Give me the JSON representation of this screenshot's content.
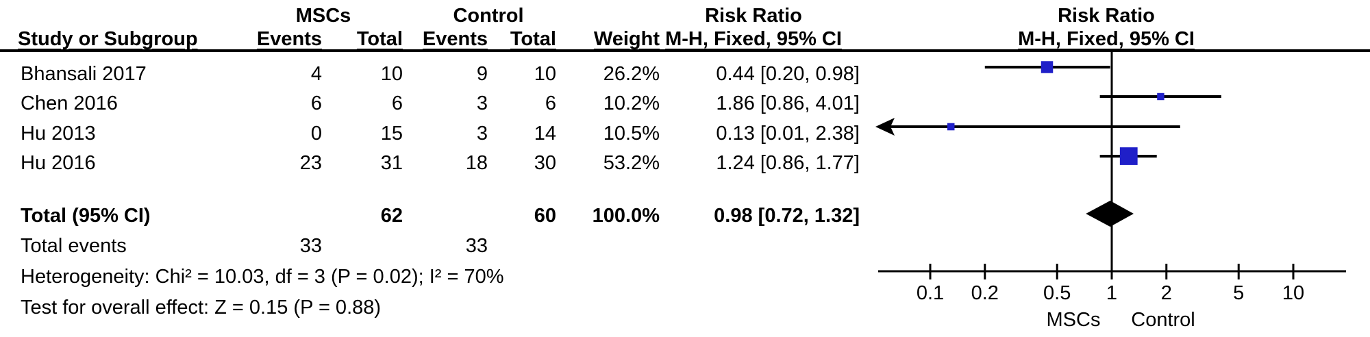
{
  "header": {
    "group1": "MSCs",
    "group2": "Control",
    "study_col": "Study or Subgroup",
    "events_col": "Events",
    "total_col": "Total",
    "weight_col": "Weight",
    "risk_ratio": "Risk Ratio",
    "mh_fixed": "M-H, Fixed, 95% CI"
  },
  "chart_data": {
    "type": "forest",
    "effect_measure": "Risk Ratio",
    "method": "M-H, Fixed, 95% CI",
    "studies": [
      {
        "name": "Bhansali 2017",
        "events1": 4,
        "total1": 10,
        "events2": 9,
        "total2": 10,
        "weight": "26.2%",
        "rr": 0.44,
        "ci_low": 0.2,
        "ci_high": 0.98,
        "ci_label": "0.44 [0.20, 0.98]"
      },
      {
        "name": "Chen 2016",
        "events1": 6,
        "total1": 6,
        "events2": 3,
        "total2": 6,
        "weight": "10.2%",
        "rr": 1.86,
        "ci_low": 0.86,
        "ci_high": 4.01,
        "ci_label": "1.86 [0.86, 4.01]"
      },
      {
        "name": "Hu 2013",
        "events1": 0,
        "total1": 15,
        "events2": 3,
        "total2": 14,
        "weight": "10.5%",
        "rr": 0.13,
        "ci_low": 0.01,
        "ci_high": 2.38,
        "ci_label": "0.13 [0.01, 2.38]"
      },
      {
        "name": "Hu 2016",
        "events1": 23,
        "total1": 31,
        "events2": 18,
        "total2": 30,
        "weight": "53.2%",
        "rr": 1.24,
        "ci_low": 0.86,
        "ci_high": 1.77,
        "ci_label": "1.24 [0.86, 1.77]"
      }
    ],
    "total": {
      "label": "Total (95% CI)",
      "total1": 62,
      "total2": 60,
      "weight": "100.0%",
      "rr": 0.98,
      "ci_low": 0.72,
      "ci_high": 1.32,
      "ci_label": "0.98 [0.72, 1.32]"
    },
    "total_events": {
      "label": "Total events",
      "events1": 33,
      "events2": 33
    },
    "heterogeneity": "Heterogeneity: Chi² = 10.03, df = 3 (P = 0.02); I² = 70%",
    "overall_effect": "Test for overall effect: Z = 0.15 (P = 0.88)",
    "axis_ticks": [
      "0.1",
      "0.2",
      "0.5",
      "1",
      "2",
      "5",
      "10"
    ],
    "axis_labels": {
      "left": "MSCs",
      "right": "Control"
    },
    "xscale": "log",
    "xlim": [
      0.052,
      19.5
    ],
    "legend_position": "bottom",
    "grid": false,
    "marker_color": "#1f1fc8",
    "diamond_color": "#000000",
    "line_color": "#000000"
  }
}
